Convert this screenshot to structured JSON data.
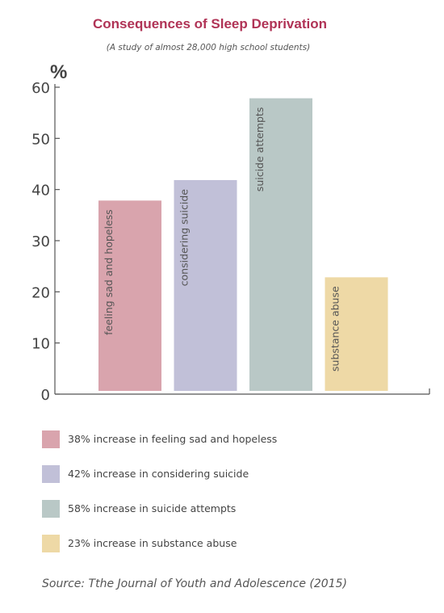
{
  "colors": {
    "title": "#b03356",
    "axis": "#555555",
    "bars": [
      "#d9a4ad",
      "#c1c0d8",
      "#b9c8c6",
      "#eed9a6"
    ]
  },
  "chart_data": {
    "type": "bar",
    "title": "Consequences of Sleep Deprivation",
    "subtitle": "(A study of almost 28,000 high school students)",
    "ylabel": "%",
    "ylim": [
      0,
      60
    ],
    "yticks": [
      "0",
      "10",
      "20",
      "30",
      "40",
      "50",
      "60"
    ],
    "categories": [
      "feeling sad and hopeless",
      "considering suicide",
      "suicide attempts",
      "substance abuse"
    ],
    "values": [
      38,
      42,
      58,
      23
    ],
    "legend": [
      "38% increase in feeling sad and hopeless",
      "42% increase in considering suicide",
      "58% increase in suicide attempts",
      "23% increase in substance abuse"
    ],
    "grid": false
  },
  "source": "Source: Tthe Journal of Youth and Adolescence (2015)"
}
